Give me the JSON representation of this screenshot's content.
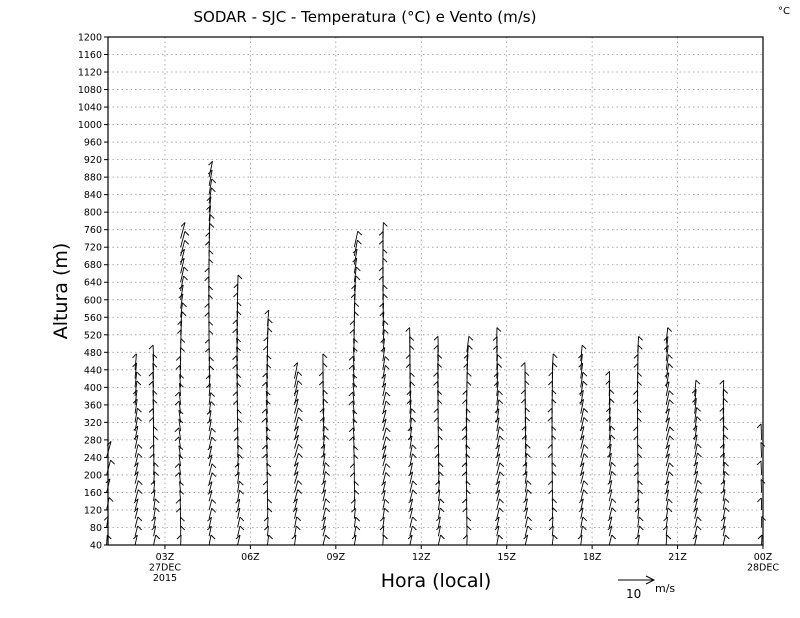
{
  "chart_data": {
    "type": "wind-barb",
    "title": "SODAR - SJC - Temperatura (°C) e Vento (m/s)",
    "corner_unit": "°C",
    "xlabel": "Hora (local)",
    "ylabel": "Altura (m)",
    "xlim": [
      0,
      23
    ],
    "ylim": [
      40,
      1200
    ],
    "grid": true,
    "y_ticks": [
      40,
      80,
      120,
      160,
      200,
      240,
      280,
      320,
      360,
      400,
      440,
      480,
      520,
      560,
      600,
      640,
      680,
      720,
      760,
      800,
      840,
      880,
      920,
      960,
      1000,
      1040,
      1080,
      1120,
      1160,
      1200
    ],
    "x_ticks": [
      {
        "x": 2,
        "lines": [
          "03Z",
          "27DEC",
          "2015"
        ]
      },
      {
        "x": 5,
        "lines": [
          "06Z"
        ]
      },
      {
        "x": 8,
        "lines": [
          "09Z"
        ]
      },
      {
        "x": 11,
        "lines": [
          "12Z"
        ]
      },
      {
        "x": 14,
        "lines": [
          "15Z"
        ]
      },
      {
        "x": 17,
        "lines": [
          "18Z"
        ]
      },
      {
        "x": 20,
        "lines": [
          "21Z"
        ]
      },
      {
        "x": 23,
        "lines": [
          "00Z",
          "28DEC"
        ]
      }
    ],
    "reference_vector": {
      "value": "10",
      "unit": "m/s"
    },
    "wind_columns": [
      {
        "x": -0.05,
        "top": 240,
        "step": 40
      },
      {
        "x": 0.95,
        "top": 440,
        "step": 20
      },
      {
        "x": 1.6,
        "top": 460,
        "step": 20
      },
      {
        "x": 2.55,
        "top": 740,
        "step": 20
      },
      {
        "x": 3.55,
        "top": 880,
        "step": 20
      },
      {
        "x": 4.55,
        "top": 620,
        "step": 20
      },
      {
        "x": 5.6,
        "top": 540,
        "step": 20
      },
      {
        "x": 6.55,
        "top": 420,
        "step": 20
      },
      {
        "x": 7.55,
        "top": 440,
        "step": 20
      },
      {
        "x": 8.65,
        "top": 720,
        "step": 20
      },
      {
        "x": 9.65,
        "top": 740,
        "step": 20
      },
      {
        "x": 10.6,
        "top": 500,
        "step": 20
      },
      {
        "x": 11.6,
        "top": 480,
        "step": 20
      },
      {
        "x": 12.6,
        "top": 480,
        "step": 20
      },
      {
        "x": 13.65,
        "top": 500,
        "step": 20
      },
      {
        "x": 14.65,
        "top": 420,
        "step": 20
      },
      {
        "x": 15.6,
        "top": 440,
        "step": 20
      },
      {
        "x": 16.6,
        "top": 460,
        "step": 20
      },
      {
        "x": 17.6,
        "top": 400,
        "step": 20
      },
      {
        "x": 18.6,
        "top": 480,
        "step": 20
      },
      {
        "x": 19.6,
        "top": 500,
        "step": 20
      },
      {
        "x": 20.6,
        "top": 380,
        "step": 20
      },
      {
        "x": 21.6,
        "top": 390,
        "step": 20
      },
      {
        "x": 22.95,
        "top": 280,
        "step": 40
      }
    ]
  }
}
